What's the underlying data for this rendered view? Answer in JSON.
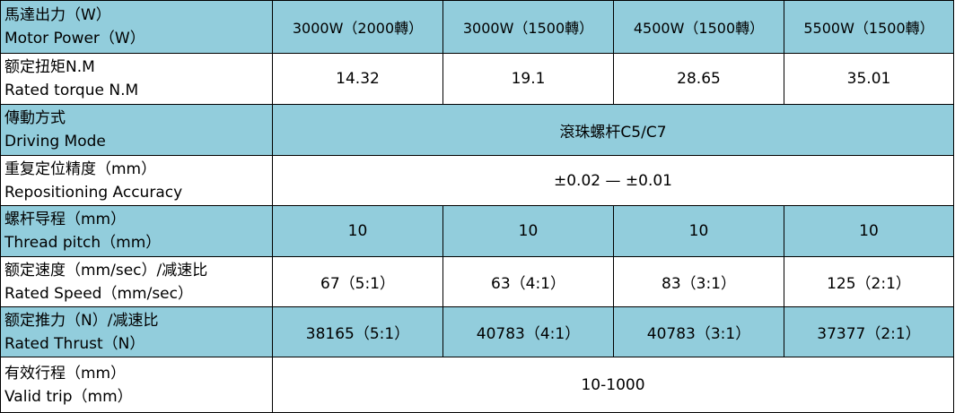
{
  "table": {
    "rows": [
      {
        "label": [
          "馬達出力（W）",
          "Motor Power（W）"
        ],
        "cells": [
          "3000W（2000轉）",
          "3000W（1500轉）",
          "4500W（1500轉）",
          "5500W（1500轉）"
        ]
      },
      {
        "label": [
          "额定扭矩N.M",
          "Rated torque N.M"
        ],
        "cells": [
          "14.32",
          "19.1",
          "28.65",
          "35.01"
        ]
      },
      {
        "label": [
          "傳動方式",
          "Driving Mode"
        ],
        "cells": [
          "滾珠螺杆C5/C7"
        ]
      },
      {
        "label": [
          "重复定位精度（mm）",
          "Repositioning Accuracy"
        ],
        "cells": [
          "±0.02 — ±0.01"
        ]
      },
      {
        "label": [
          "螺杆导程（mm）",
          "Thread pitch（mm）"
        ],
        "cells": [
          "10",
          "10",
          "10",
          "10"
        ]
      },
      {
        "label": [
          "额定速度（mm/sec）/减速比",
          "Rated Speed（mm/sec）"
        ],
        "cells": [
          "67（5:1）",
          "63（4:1）",
          "83（3:1）",
          "125（2:1）"
        ]
      },
      {
        "label": [
          "额定推力（N）/减速比",
          "Rated Thrust（N）"
        ],
        "cells": [
          "38165（5:1）",
          "40783（4:1）",
          "40783（3:1）",
          "37377（2:1）"
        ]
      },
      {
        "label": [
          "有效行程（mm）",
          "Valid trip（mm）"
        ],
        "cells": [
          "10-1000"
        ]
      }
    ]
  }
}
